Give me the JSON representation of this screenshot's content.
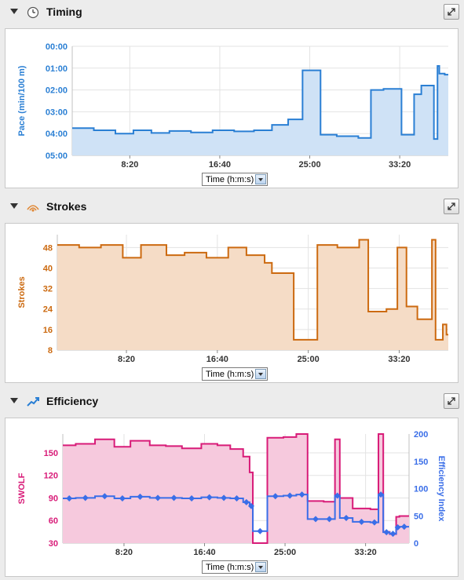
{
  "panels": {
    "timing": {
      "title": "Timing",
      "icon": "clock-icon"
    },
    "strokes": {
      "title": "Strokes",
      "icon": "strokes-icon"
    },
    "efficiency": {
      "title": "Efficiency",
      "icon": "efficiency-icon"
    }
  },
  "time_select": {
    "value": "Time (h:m:s)"
  },
  "colors": {
    "pace_line": "#2a7fd4",
    "pace_fill": "#cfe2f6",
    "strokes_line": "#cc6a10",
    "strokes_fill": "#f5dcc6",
    "swolf_line": "#d81b78",
    "swolf_fill": "#f6c9dd",
    "eff_line": "#3a6ee8"
  },
  "chart_data": [
    {
      "type": "area",
      "title": "",
      "ylabel": "Pace (min/100 m)",
      "xlabel": "",
      "x_ticks": [
        "8:20",
        "16:40",
        "25:00",
        "33:20"
      ],
      "y_ticks": [
        "00:00",
        "01:00",
        "02:00",
        "03:00",
        "04:00",
        "05:00"
      ],
      "ylim": [
        0,
        5
      ],
      "y_reversed": true,
      "xlim_seconds": [
        180,
        2270
      ],
      "series": [
        {
          "x_seconds": [
            180,
            300,
            420,
            520,
            620,
            720,
            840,
            960,
            1080,
            1190,
            1290,
            1380,
            1460,
            1560,
            1650,
            1770,
            1840,
            1910,
            2010,
            2080,
            2120,
            2150,
            2190,
            2210,
            2220,
            2250
          ],
          "values": [
            3.75,
            3.85,
            4.0,
            3.85,
            3.97,
            3.88,
            3.95,
            3.85,
            3.9,
            3.85,
            3.6,
            3.35,
            1.1,
            4.05,
            4.12,
            4.2,
            2.0,
            1.95,
            4.05,
            2.2,
            1.8,
            1.8,
            4.25,
            0.9,
            1.25,
            1.3
          ]
        }
      ]
    },
    {
      "type": "area",
      "title": "",
      "ylabel": "Strokes",
      "xlabel": "",
      "x_ticks": [
        "8:20",
        "16:40",
        "25:00",
        "33:20"
      ],
      "y_ticks": [
        8,
        16,
        24,
        32,
        40,
        48
      ],
      "ylim": [
        8,
        53
      ],
      "xlim_seconds": [
        120,
        2270
      ],
      "series": [
        {
          "x_seconds": [
            120,
            240,
            360,
            480,
            580,
            720,
            820,
            940,
            1060,
            1160,
            1260,
            1300,
            1420,
            1550,
            1660,
            1780,
            1830,
            1930,
            1990,
            2040,
            2100,
            2180,
            2200,
            2240,
            2260
          ],
          "values": [
            49,
            48,
            49,
            44,
            49,
            45,
            46,
            44,
            48,
            45,
            42,
            38,
            12,
            49,
            48,
            51,
            23,
            24,
            48,
            25,
            20,
            51,
            12,
            18,
            14
          ]
        }
      ]
    },
    {
      "type": "line",
      "title": "",
      "ylabel": "SWOLF",
      "y2label": "Efficiency Index",
      "xlabel": "",
      "x_ticks": [
        "8:20",
        "16:40",
        "25:00",
        "33:20"
      ],
      "y_ticks": [
        30,
        60,
        90,
        120,
        150
      ],
      "y2_ticks": [
        0,
        50,
        100,
        150,
        200
      ],
      "ylim": [
        30,
        175
      ],
      "y2lim": [
        0,
        200
      ],
      "xlim_seconds": [
        120,
        2270
      ],
      "series": [
        {
          "name": "SWOLF",
          "x_seconds": [
            120,
            200,
            320,
            440,
            540,
            660,
            760,
            860,
            980,
            1080,
            1160,
            1240,
            1280,
            1300,
            1390,
            1490,
            1570,
            1640,
            1740,
            1810,
            1840,
            1920,
            2030,
            2080,
            2110,
            2150,
            2190,
            2210
          ],
          "values": [
            160,
            162,
            168,
            158,
            166,
            160,
            159,
            156,
            162,
            160,
            155,
            145,
            124,
            30,
            170,
            171,
            175,
            86,
            85,
            168,
            90,
            76,
            75,
            175,
            45,
            42,
            65,
            66
          ]
        },
        {
          "name": "Efficiency Index",
          "x_seconds": [
            120,
            200,
            320,
            440,
            540,
            660,
            760,
            860,
            980,
            1080,
            1160,
            1240,
            1280,
            1300,
            1390,
            1490,
            1570,
            1640,
            1740,
            1810,
            1840,
            1920,
            2030,
            2080,
            2110,
            2150,
            2190,
            2210
          ],
          "values": [
            82,
            83,
            86,
            82,
            85,
            83,
            83,
            82,
            84,
            83,
            82,
            75,
            68,
            22,
            86,
            87,
            89,
            44,
            44,
            87,
            46,
            39,
            38,
            89,
            20,
            17,
            29,
            30
          ],
          "markers": true
        }
      ]
    }
  ]
}
